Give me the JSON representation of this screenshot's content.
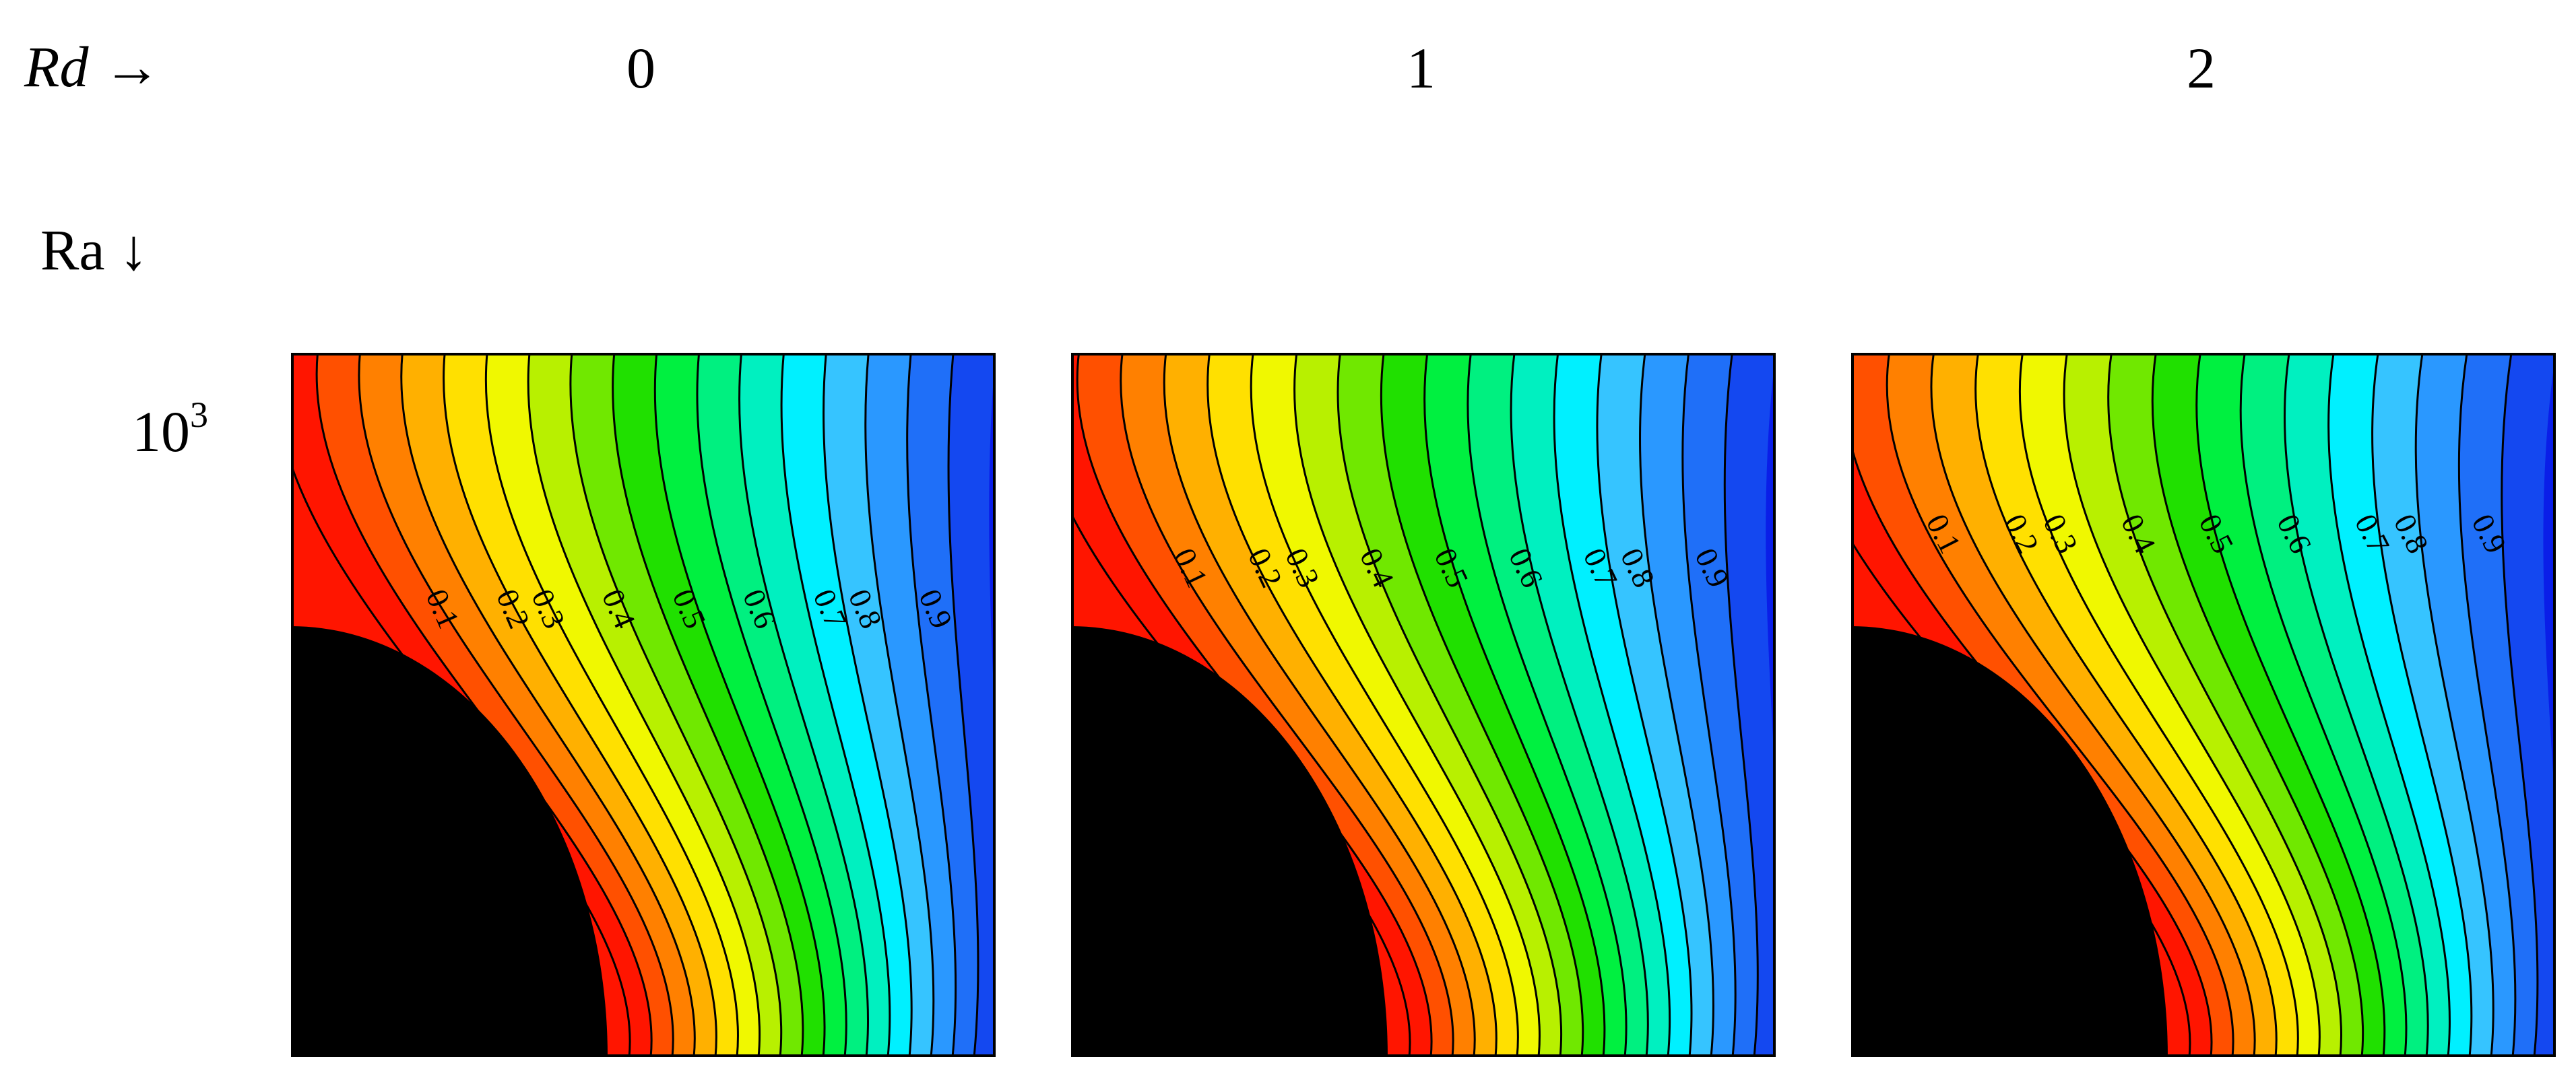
{
  "header": {
    "rd_symbol": "Rd",
    "rd_arrow": "→",
    "ra_symbol": "Ra",
    "ra_arrow": "↓",
    "columns": [
      "0",
      "1",
      "2"
    ],
    "row_base": "10",
    "row_exponent": "3"
  },
  "contours": {
    "levels": [
      "0.9",
      "0.8",
      "0.7",
      "0.6",
      "0.5",
      "0.4",
      "0.3",
      "0.2",
      "0.1"
    ],
    "colors": [
      "#0a1ee8",
      "#1448f0",
      "#1f6ff8",
      "#2a98ff",
      "#36c4ff",
      "#00f0ff",
      "#00f0c0",
      "#00f080",
      "#00f040",
      "#20e000",
      "#70e800",
      "#b8f000",
      "#f0f800",
      "#ffe000",
      "#ffb000",
      "#ff8000",
      "#ff5000",
      "#ff1500"
    ],
    "solid_color": "#000000",
    "line_color": "#000000"
  },
  "panels": [
    {
      "name": "Rd 0",
      "red_max": "#ff1500",
      "inner_extent": 0.36
    },
    {
      "name": "Rd 1",
      "red_max": "#ff1500",
      "inner_extent": 0.44
    },
    {
      "name": "Rd 2",
      "red_max": "#ff1500",
      "inner_extent": 0.48
    }
  ]
}
